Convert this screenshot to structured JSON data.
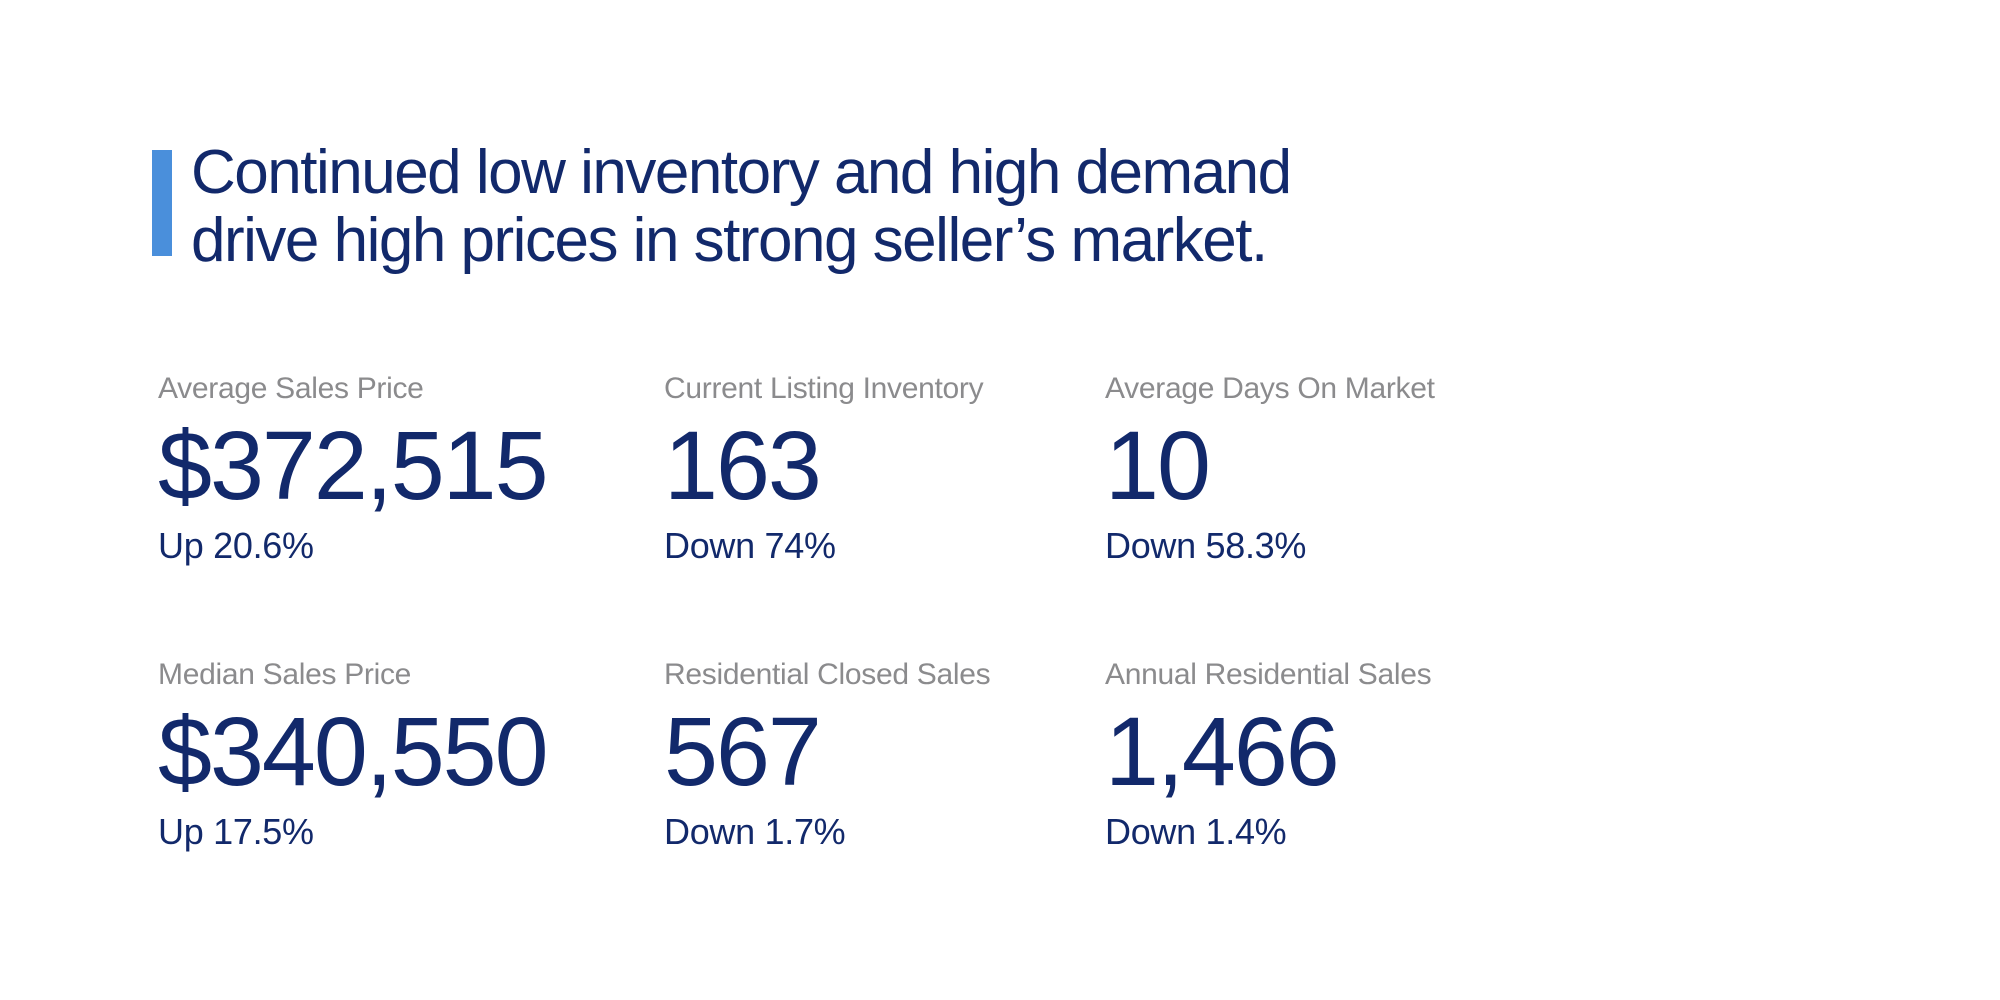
{
  "slide": {
    "headline": {
      "line1": "Continued low inventory and high demand",
      "line2": "drive high prices in strong seller’s market."
    },
    "stats": [
      {
        "label": "Average Sales Price",
        "value": "$372,515",
        "delta": "Up 20.6%"
      },
      {
        "label": "Current Listing Inventory",
        "value": "163",
        "delta": "Down 74%"
      },
      {
        "label": "Average Days On Market",
        "value": "10",
        "delta": "Down 58.3%"
      },
      {
        "label": "Median Sales Price",
        "value": "$340,550",
        "delta": "Up 17.5%"
      },
      {
        "label": "Residential Closed Sales",
        "value": "567",
        "delta": "Down 1.7%"
      },
      {
        "label": "Annual Residential Sales",
        "value": "1,466",
        "delta": "Down 1.4%"
      }
    ],
    "colors": {
      "background": "#ffffff",
      "accent_blue": "#4a8fdb",
      "navy_text": "#12296b",
      "label_gray": "#8b8b8d"
    }
  }
}
